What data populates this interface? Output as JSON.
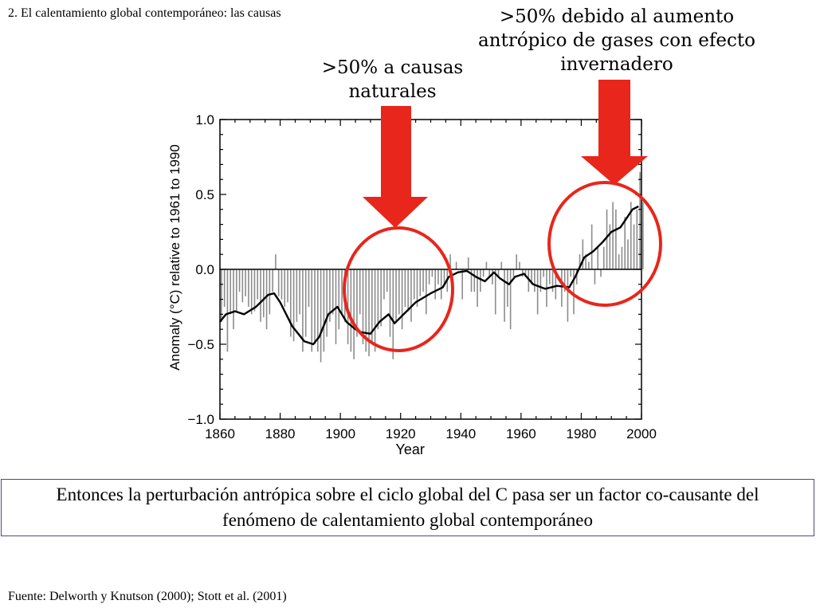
{
  "slide": {
    "title": "2. El calentamiento global contemporáneo: las causas",
    "callout_natural": ">50% a causas naturales",
    "callout_anthropic": ">50% debido al aumento antrópico de gases con efecto invernadero",
    "conclusion": "Entonces la perturbación antrópica sobre el ciclo global del C pasa ser un factor co-causante del fenómeno de calentamiento global contemporáneo",
    "source": "Fuente: Delworth y Knutson (2000); Stott et al. (2001)"
  },
  "colors": {
    "highlight": "#e8261c",
    "bars": "#8c8c8c",
    "smooth_line": "#000000"
  },
  "chart_data": {
    "type": "bar",
    "xlabel": "Year",
    "ylabel": "Anomaly (°C) relative to 1961 to 1990",
    "xlim": [
      1860,
      2000
    ],
    "ylim": [
      -1.0,
      1.0
    ],
    "xticks": [
      "1860",
      "1880",
      "1900",
      "1920",
      "1940",
      "1960",
      "1980",
      "2000"
    ],
    "yticks": [
      "1.0",
      "0.5",
      "0.0",
      "−0.5",
      "−1.0"
    ],
    "grid": false,
    "annual_anomaly": {
      "x_start": 1860,
      "values": [
        -0.35,
        -0.25,
        -0.55,
        -0.3,
        -0.4,
        -0.28,
        -0.15,
        -0.22,
        -0.18,
        -0.25,
        -0.3,
        -0.28,
        -0.2,
        -0.35,
        -0.32,
        -0.4,
        -0.3,
        -0.15,
        0.1,
        -0.18,
        -0.2,
        -0.25,
        -0.22,
        -0.45,
        -0.48,
        -0.35,
        -0.3,
        -0.55,
        -0.45,
        -0.25,
        -0.55,
        -0.5,
        -0.55,
        -0.62,
        -0.55,
        -0.45,
        -0.35,
        -0.3,
        -0.5,
        -0.4,
        -0.3,
        -0.35,
        -0.5,
        -0.55,
        -0.6,
        -0.45,
        -0.3,
        -0.5,
        -0.55,
        -0.58,
        -0.5,
        -0.55,
        -0.4,
        -0.38,
        -0.2,
        -0.15,
        -0.45,
        -0.6,
        -0.35,
        -0.3,
        -0.4,
        -0.25,
        -0.28,
        -0.35,
        -0.2,
        -0.25,
        -0.18,
        -0.15,
        -0.3,
        -0.1,
        -0.05,
        -0.2,
        -0.1,
        -0.2,
        -0.1,
        -0.15,
        0.1,
        0.0,
        0.05,
        0.0,
        -0.2,
        0.0,
        0.08,
        -0.15,
        -0.15,
        -0.25,
        -0.15,
        -0.05,
        0.05,
        -0.05,
        -0.1,
        -0.3,
        -0.05,
        0.05,
        -0.35,
        -0.25,
        -0.4,
        -0.05,
        0.1,
        0.05,
        -0.05,
        -0.05,
        -0.15,
        -0.1,
        -0.15,
        -0.3,
        -0.15,
        -0.05,
        -0.25,
        -0.1,
        -0.15,
        -0.2,
        0.0,
        -0.25,
        -0.15,
        -0.35,
        -0.05,
        -0.3,
        -0.1,
        0.1,
        0.2,
        0.1,
        0.05,
        0.3,
        -0.1,
        0.15,
        -0.05,
        0.15,
        0.4,
        0.3,
        0.45,
        0.4,
        0.1,
        0.15,
        0.35,
        0.2,
        0.45,
        0.3,
        0.4,
        0.65,
        0.45
      ]
    },
    "smoothed": {
      "x": [
        1860,
        1862,
        1865,
        1868,
        1872,
        1876,
        1878,
        1880,
        1884,
        1888,
        1891,
        1893,
        1896,
        1899,
        1902,
        1905,
        1907,
        1910,
        1913,
        1916,
        1918,
        1921,
        1925,
        1930,
        1934,
        1936,
        1939,
        1942,
        1945,
        1948,
        1951,
        1953,
        1956,
        1958,
        1961,
        1964,
        1968,
        1972,
        1976,
        1978,
        1981,
        1984,
        1987,
        1990,
        1993,
        1997,
        1999
      ],
      "y": [
        -0.35,
        -0.3,
        -0.28,
        -0.3,
        -0.25,
        -0.17,
        -0.16,
        -0.22,
        -0.38,
        -0.48,
        -0.5,
        -0.45,
        -0.3,
        -0.25,
        -0.35,
        -0.4,
        -0.42,
        -0.43,
        -0.35,
        -0.3,
        -0.36,
        -0.3,
        -0.22,
        -0.16,
        -0.12,
        -0.05,
        -0.02,
        -0.01,
        -0.05,
        -0.08,
        -0.02,
        -0.06,
        -0.1,
        -0.05,
        -0.03,
        -0.1,
        -0.13,
        -0.11,
        -0.12,
        -0.05,
        0.08,
        0.12,
        0.18,
        0.25,
        0.28,
        0.4,
        0.42
      ]
    }
  }
}
